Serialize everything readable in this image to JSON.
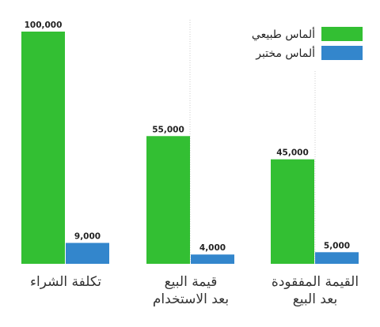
{
  "chart_data": {
    "type": "bar",
    "categories": [
      [
        "تكلفة الشراء"
      ],
      [
        "قيمة البيع",
        "بعد الاستخدام"
      ],
      [
        "القيمة المفقودة",
        "بعد البيع"
      ]
    ],
    "series": [
      {
        "name": "ألماس طبيعي",
        "values": [
          100000,
          55000,
          45000
        ],
        "labels": [
          "100,000",
          "55,000",
          "45,000"
        ],
        "color": "#33bf33"
      },
      {
        "name": "ألماس مختبر",
        "values": [
          9000,
          4000,
          5000
        ],
        "labels": [
          "9,000",
          "4,000",
          "5,000"
        ],
        "color": "#3386cc"
      }
    ],
    "ylim": [
      0,
      100000
    ],
    "grid": false,
    "legend": "top-right"
  }
}
